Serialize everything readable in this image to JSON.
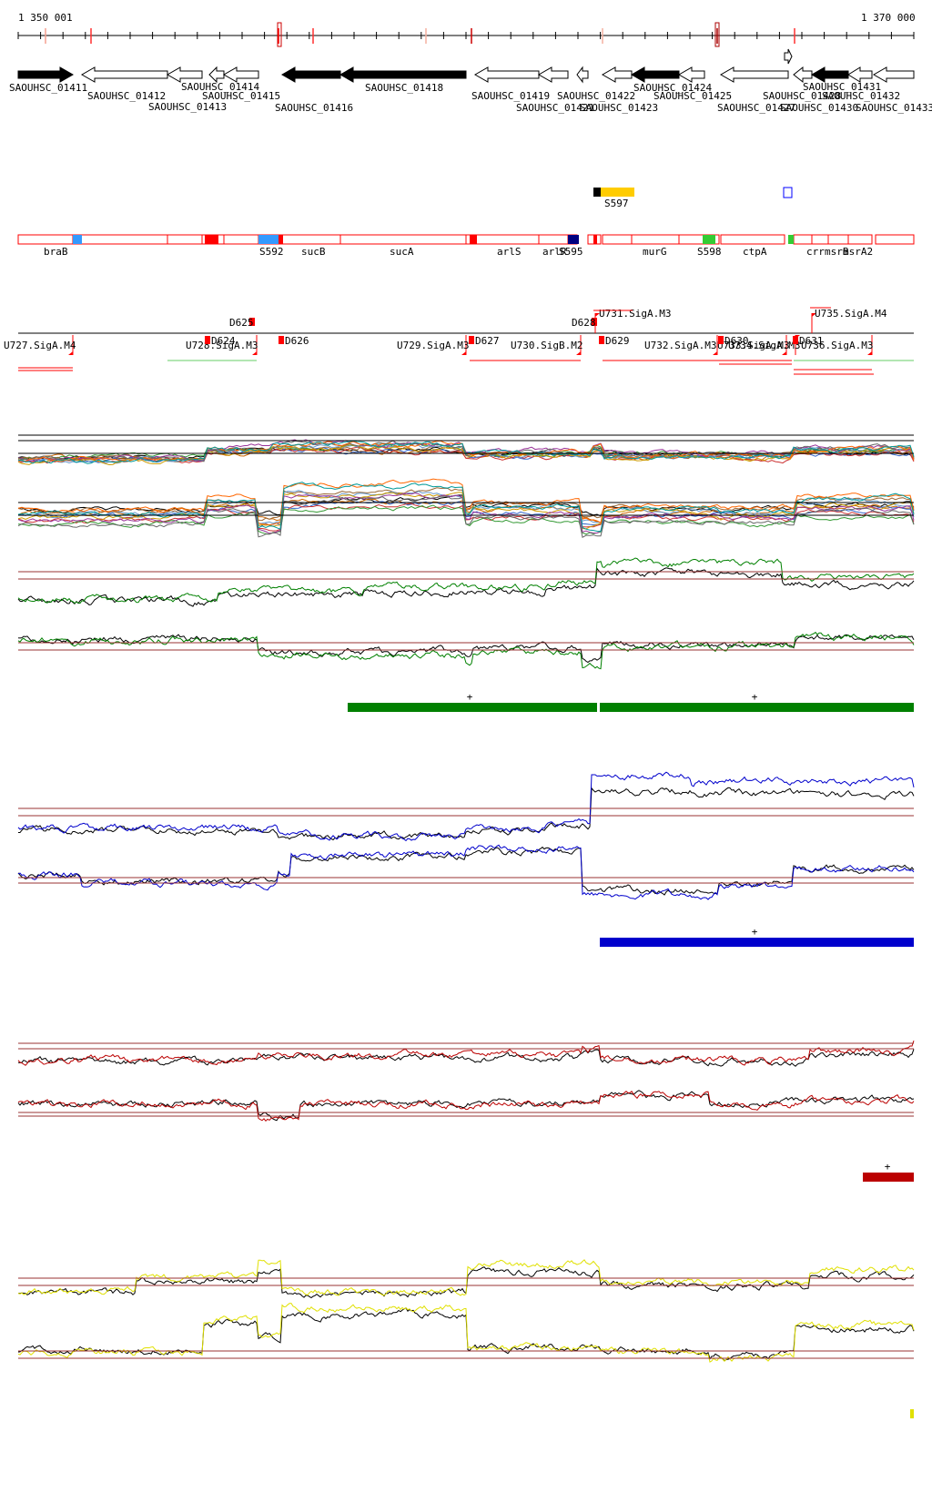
{
  "coordinates": {
    "start_label": "1 350 001",
    "end_label": "1 370 000",
    "start": 1350001,
    "end": 1370000
  },
  "colors": {
    "axis": "#000000",
    "tick_accent": "#ff0000",
    "annotation_box": "#ff0000",
    "condition_green": "#008000",
    "condition_blue": "#0000cc",
    "condition_red": "#bb0000",
    "condition_yellow": "#e0e000",
    "threshold": "#993333"
  },
  "genes": [
    {
      "label": "SAOUHSC_01411",
      "strand": "+",
      "filled": true
    },
    {
      "label": "SAOUHSC_01412",
      "strand": "-",
      "filled": false
    },
    {
      "label": "SAOUHSC_01413",
      "strand": "-",
      "filled": false
    },
    {
      "label": "SAOUHSC_01414",
      "strand": "-",
      "filled": false
    },
    {
      "label": "SAOUHSC_01415",
      "strand": "-",
      "filled": false
    },
    {
      "label": "SAOUHSC_01416",
      "strand": "-",
      "filled": true
    },
    {
      "label": "SAOUHSC_01418",
      "strand": "-",
      "filled": true
    },
    {
      "label": "SAOUHSC_01419",
      "strand": "-",
      "filled": false
    },
    {
      "label": "SAOUHSC_01421",
      "strand": "-",
      "filled": false
    },
    {
      "label": "SAOUHSC_01422",
      "strand": "-",
      "filled": false
    },
    {
      "label": "SAOUHSC_01423",
      "strand": "-",
      "filled": false
    },
    {
      "label": "SAOUHSC_01424",
      "strand": "-",
      "filled": true
    },
    {
      "label": "SAOUHSC_01425",
      "strand": "-",
      "filled": false
    },
    {
      "label": "SAOUHSC_01427",
      "strand": "-",
      "filled": false
    },
    {
      "label": "SAOUHSC_01428",
      "strand": "+",
      "filled": false
    },
    {
      "label": "SAOUHSC_01430",
      "strand": "-",
      "filled": false
    },
    {
      "label": "SAOUHSC_01431",
      "strand": "-",
      "filled": true
    },
    {
      "label": "SAOUHSC_01432",
      "strand": "-",
      "filled": false
    },
    {
      "label": "SAOUHSC_01433",
      "strand": "-",
      "filled": false
    }
  ],
  "novel_features": [
    {
      "label": "S597",
      "color": "#ffcc00"
    }
  ],
  "annotations": [
    "braB",
    "S592",
    "sucB",
    "sucA",
    "arlS",
    "arlR",
    "S595",
    "murG",
    "S598",
    "ctpA",
    "crr",
    "msrB",
    "msrA2"
  ],
  "transcription_units": {
    "upshifts": [
      "U727.SigA.M4",
      "U728.SigA.M3",
      "U729.SigA.M3",
      "U730.SigB.M2",
      "U731.SigA.M3",
      "U732.SigA.M3",
      "U733.SigA.M3",
      "U734.SigA.M3",
      "U735.SigA.M4",
      "U736.SigA.M3"
    ],
    "downshifts": [
      "D624",
      "D625",
      "D626",
      "D627",
      "D628",
      "D629",
      "D630",
      "D631"
    ]
  },
  "panels": [
    {
      "name": "multi-condition",
      "plus_labels": []
    },
    {
      "name": "green",
      "plus_labels": [
        "+",
        "+"
      ]
    },
    {
      "name": "blue",
      "plus_labels": [
        "+"
      ]
    },
    {
      "name": "red",
      "plus_labels": [
        "+"
      ]
    },
    {
      "name": "yellow",
      "plus_labels": []
    }
  ]
}
